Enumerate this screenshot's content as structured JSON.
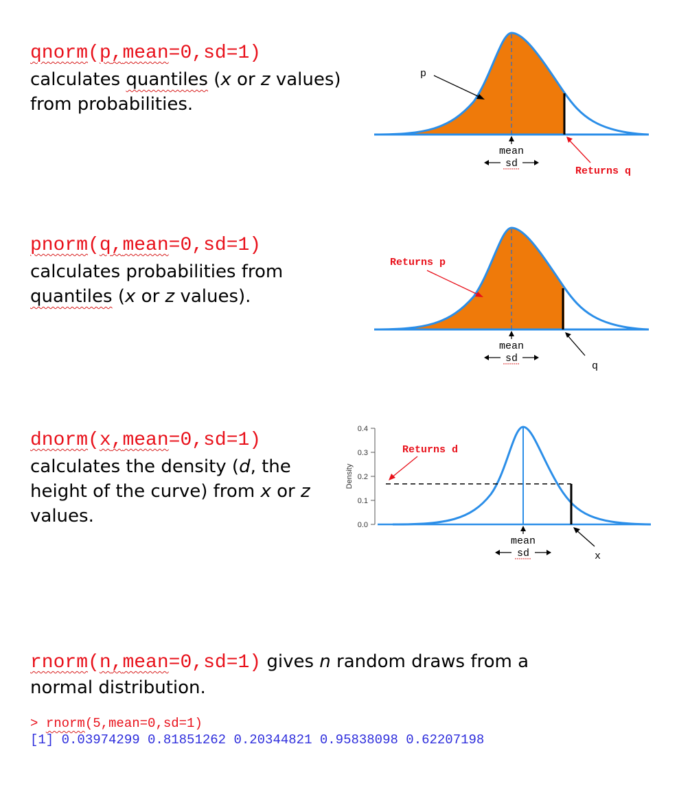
{
  "colors": {
    "code_red": "#e8101a",
    "curve_blue": "#2b8ee8",
    "fill_orange": "#ef7a0a",
    "console_blue": "#2d2ddc"
  },
  "qnorm": {
    "fn": "qnorm",
    "args_open": "(",
    "arg1": "p",
    "sep1": ",",
    "arg2_name": "mean",
    "arg2_rest": "=0,",
    "arg3": "sd=1)",
    "desc1": "calculates ",
    "desc_quantiles": "quantiles",
    "desc2": " (",
    "x": "x",
    "or": " or ",
    "z": "z",
    "values_close": " values)",
    "desc_line2": "from probabilities.",
    "label_p": "p",
    "label_mean": "mean",
    "label_sd": "sd",
    "label_returns": "Returns q"
  },
  "pnorm": {
    "fn": "pnorm",
    "args_open": "(",
    "arg1": "q",
    "sep1": ",",
    "arg2_name": "mean",
    "arg2_rest": "=0,",
    "arg3": "sd=1)",
    "desc_line1": "calculates probabilities from",
    "desc_quantiles": "quantiles",
    "desc2": " (",
    "x": "x",
    "or": " or ",
    "z": "z",
    "values_close": " values).",
    "label_returns": "Returns p",
    "label_mean": "mean",
    "label_sd": "sd",
    "label_q": "q"
  },
  "dnorm": {
    "fn": "dnorm",
    "args_open": "(",
    "arg1": "x",
    "sep1": ",",
    "arg2_name": "mean",
    "arg2_rest": "=0,",
    "arg3": "sd=1)",
    "desc1": "calculates the density (",
    "d": "d",
    "desc1b": ", the",
    "desc2": "height of the curve) from ",
    "x": "x",
    "or": " or ",
    "z": "z",
    "desc3": "values.",
    "label_returns": "Returns d",
    "label_mean": "mean",
    "label_sd": "sd",
    "label_x": "x",
    "ylabel": "Density",
    "yticks": [
      "0.0",
      "0.1",
      "0.2",
      "0.3",
      "0.4"
    ]
  },
  "rnorm": {
    "fn": "rnorm",
    "args_open": "(",
    "arg1": "n",
    "sep1": ",",
    "arg2_name": "mean",
    "arg2_rest": "=0,",
    "arg3": "sd=1)",
    "desc1": " gives ",
    "n": "n",
    "desc2": " random draws from a",
    "desc_line2": "normal distribution.",
    "console_prompt": "> ",
    "console_fn": "rnorm",
    "console_args": "(5,mean=0,sd=1)",
    "console_output": "[1] 0.03974299 0.81851262 0.20344821 0.95838098 0.62207198"
  }
}
